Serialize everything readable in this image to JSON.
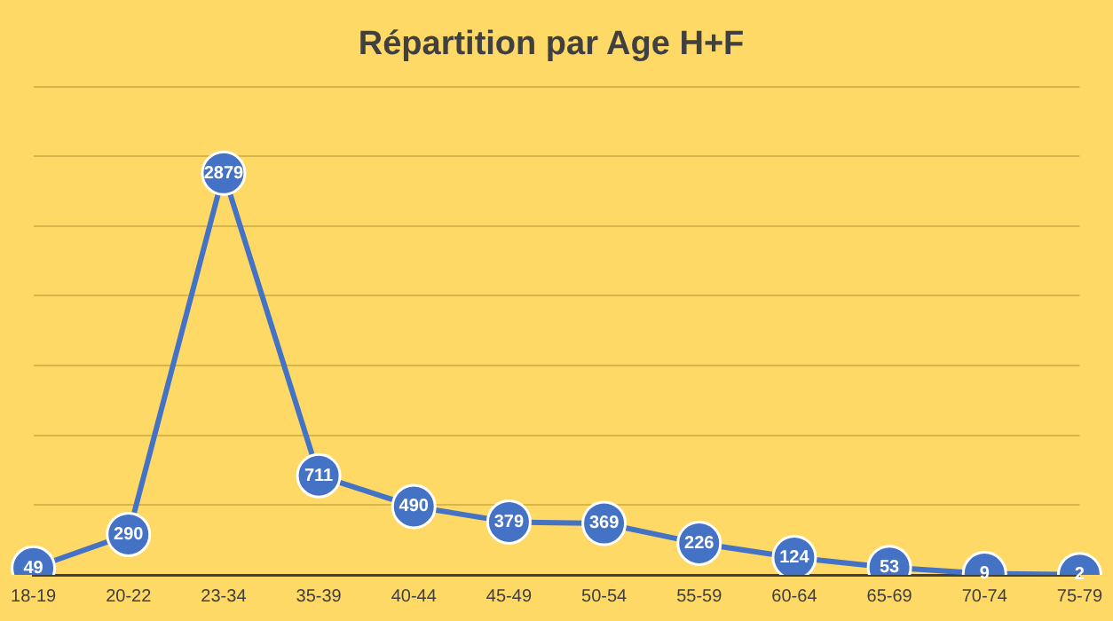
{
  "chart_data": {
    "type": "line",
    "title": "Répartition par Age H+F",
    "categories": [
      "18-19",
      "20-22",
      "23-34",
      "35-39",
      "40-44",
      "45-49",
      "50-54",
      "55-59",
      "60-64",
      "65-69",
      "70-74",
      "75-79"
    ],
    "series": [
      {
        "color": "#4472c4",
        "values": [
          49,
          290,
          2879,
          711,
          490,
          379,
          369,
          226,
          124,
          53,
          9,
          2
        ]
      }
    ],
    "ylim": [
      0,
      3500
    ],
    "yticks": [
      {
        "value": 0,
        "label": null
      },
      {
        "value": 500,
        "label": null
      },
      {
        "value": 1000,
        "label": null
      },
      {
        "value": 1500,
        "label": null
      },
      {
        "value": 2000,
        "label": null
      },
      {
        "value": 2500,
        "label": null
      },
      {
        "value": 3000,
        "label": null
      },
      {
        "value": 3500,
        "label": null
      }
    ],
    "tick_labels": "x",
    "grid": "y",
    "legend": false,
    "marker": "circle",
    "line_style": "solid",
    "data_labels": true
  }
}
